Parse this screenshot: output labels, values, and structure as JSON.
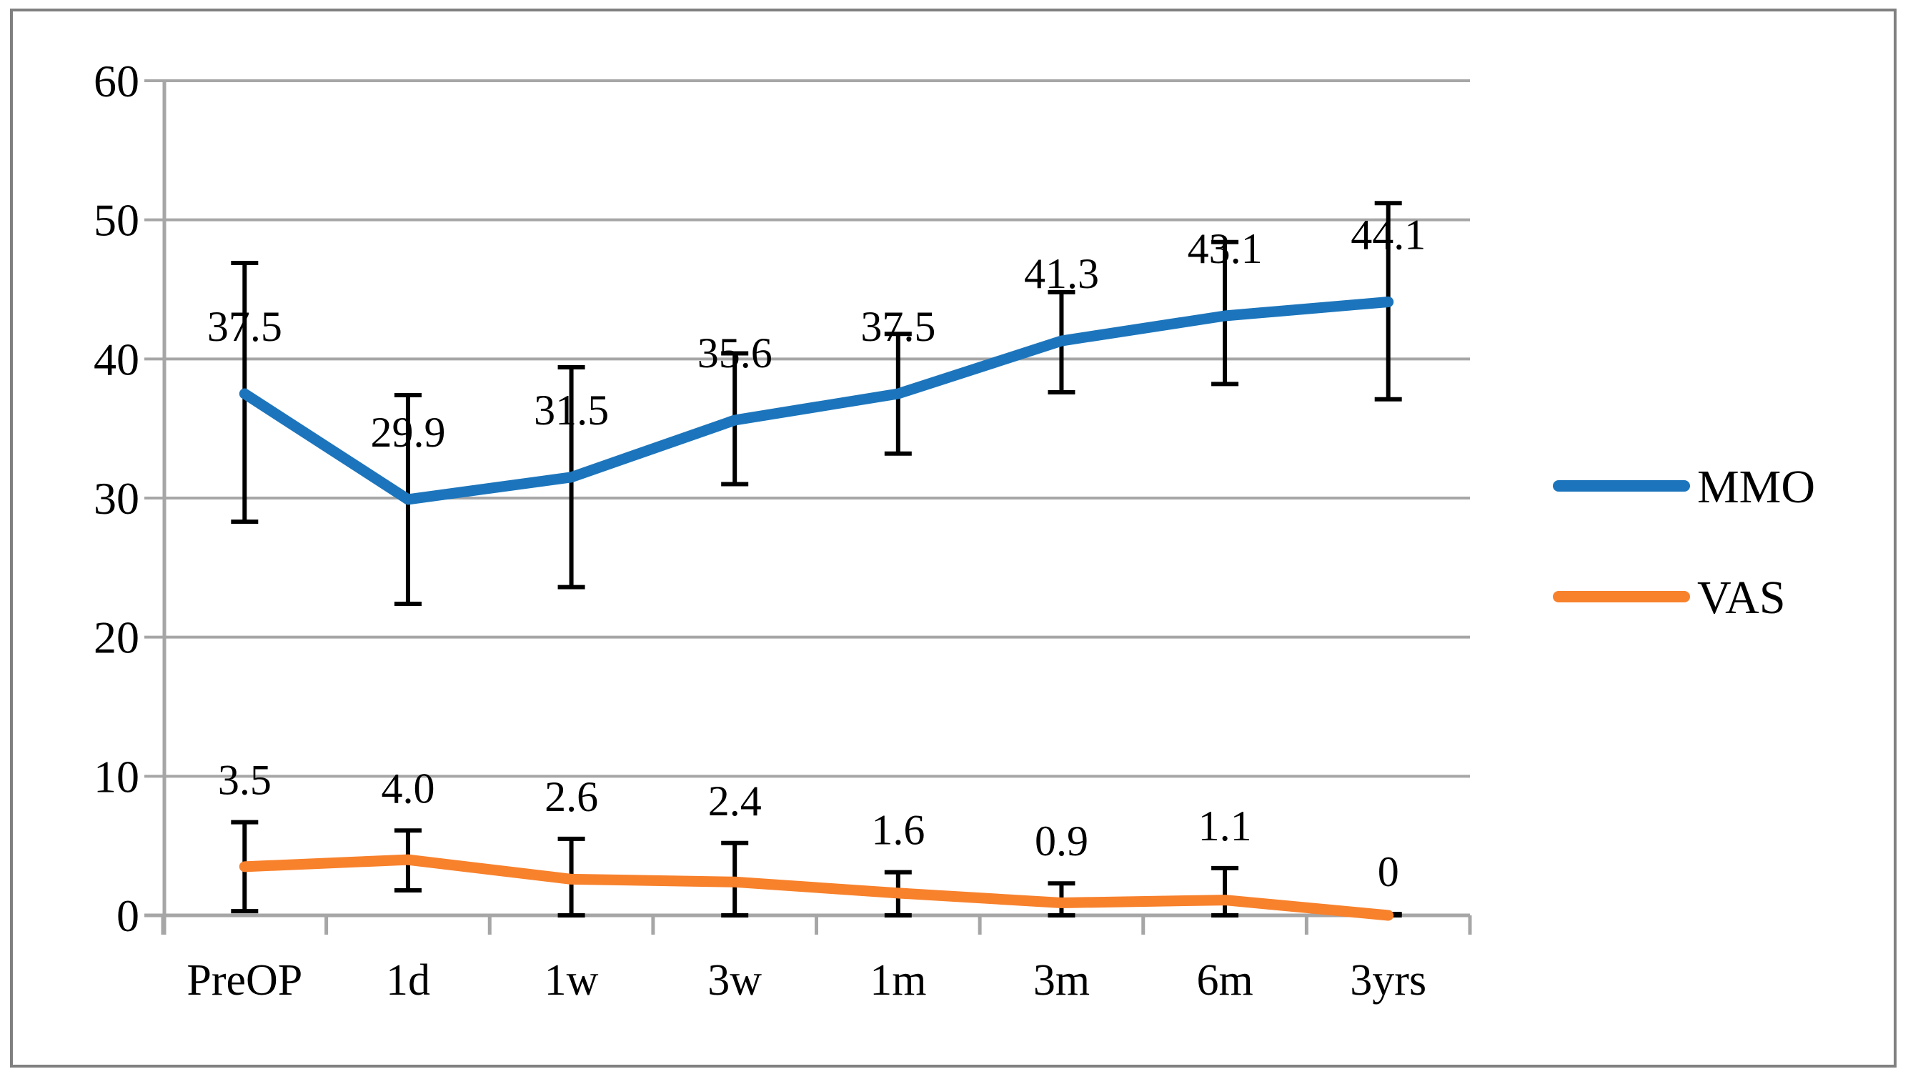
{
  "figure": {
    "background": "#FFFFFF",
    "border_color": "#808080",
    "grid_color": "#A6A6A6",
    "axis_color": "#A6A6A6",
    "text_color": "#000000",
    "error_bar_color": "#000000"
  },
  "legend": {
    "position": "right",
    "items": [
      {
        "label": "MMO",
        "color": "#1C75BC"
      },
      {
        "label": "VAS",
        "color": "#F8812C"
      }
    ]
  },
  "chart_data": {
    "type": "line",
    "categories": [
      "PreOP",
      "1d",
      "1w",
      "3w",
      "1m",
      "3m",
      "6m",
      "3yrs"
    ],
    "series": [
      {
        "name": "MMO",
        "color": "#1C75BC",
        "values": [
          37.5,
          29.9,
          31.5,
          35.6,
          37.5,
          41.3,
          43.1,
          44.1
        ],
        "data_labels": [
          "37.5",
          "29.9",
          "31.5",
          "35.6",
          "37.5",
          "41.3",
          "43.1",
          "44.1"
        ],
        "error_upper": [
          46.9,
          37.4,
          39.4,
          40.4,
          41.8,
          44.8,
          48.4,
          51.2
        ],
        "error_lower": [
          28.3,
          22.4,
          23.6,
          31.0,
          33.2,
          37.6,
          38.2,
          37.1
        ]
      },
      {
        "name": "VAS",
        "color": "#F8812C",
        "values": [
          3.5,
          4.0,
          2.6,
          2.4,
          1.6,
          0.9,
          1.1,
          0
        ],
        "data_labels": [
          "3.5",
          "4.0",
          "2.6",
          "2.4",
          "1.6",
          "0.9",
          "1.1",
          "0"
        ],
        "error_upper": [
          6.7,
          6.1,
          5.5,
          5.2,
          3.1,
          2.3,
          3.4,
          0.1
        ],
        "error_lower": [
          0.3,
          1.8,
          0,
          0,
          0,
          0,
          0,
          0
        ]
      }
    ],
    "ylim": [
      0,
      60
    ],
    "ytick_interval": 10,
    "ytick_labels": [
      "0",
      "10",
      "20",
      "30",
      "40",
      "50",
      "60"
    ],
    "grid": true,
    "legend_position": "right"
  }
}
